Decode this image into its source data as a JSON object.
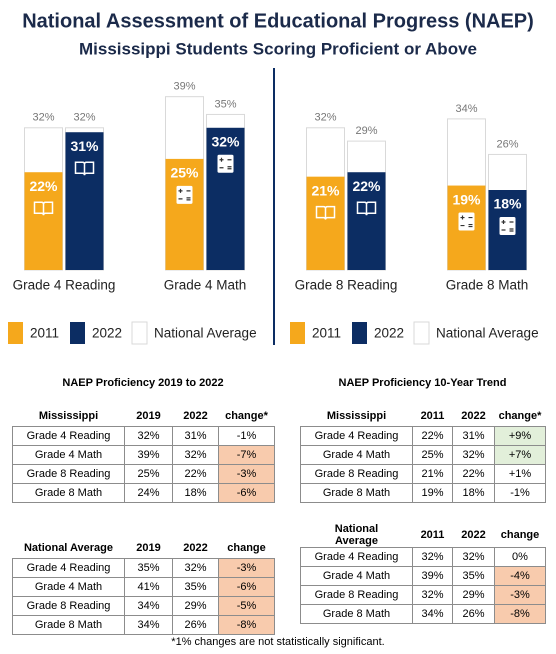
{
  "title": "National Assessment of Educational Progress (NAEP)",
  "subtitle": "Mississippi Students Scoring Proficient or Above",
  "chart_data": [
    {
      "type": "bar",
      "categories": [
        "Grade 4 Reading",
        "Grade 4 Math"
      ],
      "ylim": [
        0,
        45
      ],
      "national_average_label": "National Average",
      "national_average_color": "#ffffff",
      "series": [
        {
          "name": "2011",
          "color": "#f5a81c",
          "values": [
            22,
            25
          ],
          "value_labels": [
            "22%",
            "25%"
          ],
          "national_average": [
            32,
            39
          ],
          "national_average_labels": [
            "32%",
            "39%"
          ]
        },
        {
          "name": "2022",
          "color": "#0c2d63",
          "values": [
            31,
            32
          ],
          "value_labels": [
            "31%",
            "32%"
          ],
          "national_average": [
            32,
            35
          ],
          "national_average_labels": [
            "32%",
            "35%"
          ]
        }
      ]
    },
    {
      "type": "bar",
      "categories": [
        "Grade 8 Reading",
        "Grade 8 Math"
      ],
      "ylim": [
        0,
        45
      ],
      "national_average_label": "National Average",
      "national_average_color": "#ffffff",
      "series": [
        {
          "name": "2011",
          "color": "#f5a81c",
          "values": [
            21,
            19
          ],
          "value_labels": [
            "21%",
            "19%"
          ],
          "national_average": [
            32,
            34
          ],
          "national_average_labels": [
            "32%",
            "34%"
          ]
        },
        {
          "name": "2022",
          "color": "#0c2d63",
          "values": [
            22,
            18
          ],
          "value_labels": [
            "22%",
            "18%"
          ],
          "national_average": [
            29,
            26
          ],
          "national_average_labels": [
            "29%",
            "26%"
          ]
        }
      ]
    }
  ],
  "tables": [
    {
      "title": "NAEP Proficiency 2019 to 2022",
      "header": [
        "Mississippi",
        "2019",
        "2022",
        "change*"
      ],
      "rows": [
        [
          "Grade 4 Reading",
          "32%",
          "31%",
          "-1%"
        ],
        [
          "Grade 4 Math",
          "39%",
          "32%",
          "-7%"
        ],
        [
          "Grade 8 Reading",
          "25%",
          "22%",
          "-3%"
        ],
        [
          "Grade 8 Math",
          "24%",
          "18%",
          "-6%"
        ]
      ],
      "change_fills": [
        null,
        "#f8cbad",
        "#f8cbad",
        "#f8cbad"
      ]
    },
    {
      "title": "NAEP Proficiency 10-Year Trend",
      "header": [
        "Mississippi",
        "2011",
        "2022",
        "change*"
      ],
      "rows": [
        [
          "Grade 4 Reading",
          "22%",
          "31%",
          "+9%"
        ],
        [
          "Grade 4 Math",
          "25%",
          "32%",
          "+7%"
        ],
        [
          "Grade 8 Reading",
          "21%",
          "22%",
          "+1%"
        ],
        [
          "Grade 8 Math",
          "19%",
          "18%",
          "-1%"
        ]
      ],
      "change_fills": [
        "#e2efda",
        "#e2efda",
        null,
        null
      ]
    },
    {
      "header": [
        "National Average",
        "2019",
        "2022",
        "change"
      ],
      "rows": [
        [
          "Grade 4 Reading",
          "35%",
          "32%",
          "-3%"
        ],
        [
          "Grade 4 Math",
          "41%",
          "35%",
          "-6%"
        ],
        [
          "Grade 8 Reading",
          "34%",
          "29%",
          "-5%"
        ],
        [
          "Grade 8 Math",
          "34%",
          "26%",
          "-8%"
        ]
      ],
      "change_fills": [
        "#f8cbad",
        "#f8cbad",
        "#f8cbad",
        "#f8cbad"
      ]
    },
    {
      "header": [
        "National Average",
        "2011",
        "2022",
        "change"
      ],
      "rows": [
        [
          "Grade 4 Reading",
          "32%",
          "32%",
          "0%"
        ],
        [
          "Grade 4 Math",
          "39%",
          "35%",
          "-4%"
        ],
        [
          "Grade 8 Reading",
          "32%",
          "29%",
          "-3%"
        ],
        [
          "Grade 8 Math",
          "34%",
          "26%",
          "-8%"
        ]
      ],
      "change_fills": [
        null,
        "#f8cbad",
        "#f8cbad",
        "#f8cbad"
      ]
    }
  ],
  "footnote": "*1% changes are not statistically significant."
}
